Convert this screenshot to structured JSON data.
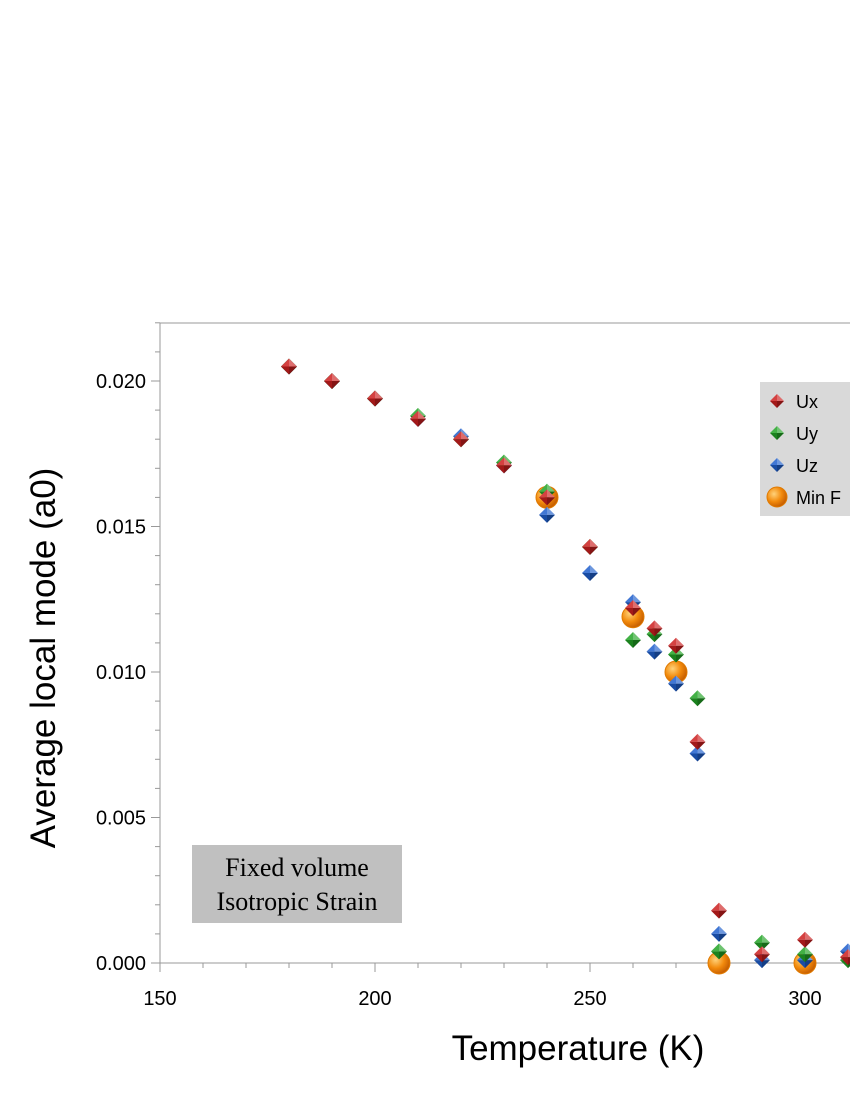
{
  "chart_data": {
    "type": "scatter",
    "xlabel": "Temperature (K)",
    "ylabel": "Average local mode (a0)",
    "xlim": [
      150,
      312
    ],
    "ylim": [
      0,
      0.022
    ],
    "x_ticks": [
      "150",
      "200",
      "250",
      "300"
    ],
    "y_ticks": [
      "0.000",
      "0.005",
      "0.010",
      "0.015",
      "0.020"
    ],
    "legend_position": "top-right",
    "annotation": {
      "line1": "Fixed volume",
      "line2": "Isotropic Strain"
    },
    "series": [
      {
        "name": "Ux",
        "marker": "diamond",
        "color": "#cc1f1f",
        "points": [
          [
            180,
            0.0205
          ],
          [
            190,
            0.02
          ],
          [
            200,
            0.0194
          ],
          [
            210,
            0.0187
          ],
          [
            220,
            0.018
          ],
          [
            230,
            0.0171
          ],
          [
            240,
            0.016
          ],
          [
            250,
            0.0143
          ],
          [
            260,
            0.0122
          ],
          [
            265,
            0.0115
          ],
          [
            270,
            0.0109
          ],
          [
            275,
            0.0076
          ],
          [
            280,
            0.0018
          ],
          [
            290,
            0.0003
          ],
          [
            300,
            0.0008
          ],
          [
            310,
            0.0002
          ]
        ]
      },
      {
        "name": "Uy",
        "marker": "diamond",
        "color": "#22a325",
        "points": [
          [
            180,
            0.0205
          ],
          [
            190,
            0.02
          ],
          [
            200,
            0.0194
          ],
          [
            210,
            0.0188
          ],
          [
            220,
            0.018
          ],
          [
            230,
            0.0172
          ],
          [
            240,
            0.0162
          ],
          [
            250,
            0.0143
          ],
          [
            260,
            0.0111
          ],
          [
            265,
            0.0113
          ],
          [
            270,
            0.0106
          ],
          [
            275,
            0.0091
          ],
          [
            280,
            0.0004
          ],
          [
            290,
            0.0007
          ],
          [
            300,
            0.0003
          ],
          [
            310,
            0.0001
          ]
        ]
      },
      {
        "name": "Uz",
        "marker": "diamond",
        "color": "#1f5fcc",
        "points": [
          [
            180,
            0.0205
          ],
          [
            190,
            0.02
          ],
          [
            200,
            0.0194
          ],
          [
            210,
            0.0187
          ],
          [
            220,
            0.0181
          ],
          [
            230,
            0.0171
          ],
          [
            240,
            0.0154
          ],
          [
            250,
            0.0134
          ],
          [
            260,
            0.0124
          ],
          [
            265,
            0.0107
          ],
          [
            270,
            0.0096
          ],
          [
            275,
            0.0072
          ],
          [
            280,
            0.001
          ],
          [
            290,
            0.0001
          ],
          [
            300,
            0.0001
          ],
          [
            310,
            0.0004
          ]
        ]
      },
      {
        "name": "Min F",
        "marker": "circle",
        "color": "#f28a0c",
        "points": [
          [
            240,
            0.016
          ],
          [
            260,
            0.0119
          ],
          [
            270,
            0.01
          ],
          [
            280,
            0.0
          ],
          [
            300,
            0.0
          ]
        ]
      }
    ]
  }
}
